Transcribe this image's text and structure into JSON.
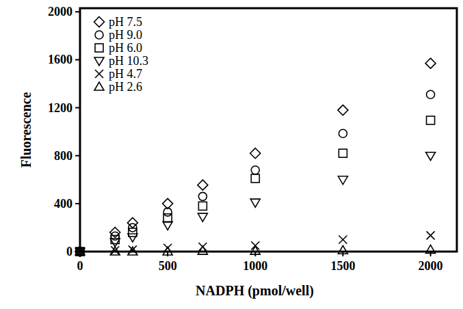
{
  "chart_data": {
    "type": "scatter",
    "x_label": "NADPH (pmol/well)",
    "y_label": "Fluorescence",
    "x": [
      0,
      200,
      300,
      500,
      700,
      1000,
      1500,
      2000
    ],
    "series": [
      {
        "name": "pH 7.5",
        "color": "#000000",
        "marker": "diamond",
        "values": [
          0,
          160,
          240,
          400,
          555,
          820,
          1180,
          1570
        ]
      },
      {
        "name": "pH 9.0",
        "color": "#000000",
        "marker": "circle",
        "values": [
          0,
          130,
          200,
          330,
          460,
          680,
          985,
          1310
        ]
      },
      {
        "name": "pH 6.0",
        "color": "#000000",
        "marker": "square",
        "values": [
          0,
          100,
          160,
          280,
          380,
          610,
          820,
          1095
        ]
      },
      {
        "name": "pH 10.3",
        "color": "#000000",
        "marker": "triangle-down",
        "values": [
          0,
          80,
          120,
          220,
          290,
          410,
          600,
          800
        ]
      },
      {
        "name": "pH 4.7",
        "color": "#000000",
        "marker": "x",
        "values": [
          0,
          10,
          15,
          30,
          40,
          50,
          100,
          135
        ]
      },
      {
        "name": "pH 2.6",
        "color": "#000000",
        "marker": "triangle-up",
        "values": [
          0,
          0,
          0,
          0,
          5,
          5,
          10,
          15
        ]
      }
    ],
    "xlim": [
      0,
      2150
    ],
    "ylim": [
      0,
      2030
    ],
    "xticks": [
      0,
      500,
      1000,
      1500,
      2000
    ],
    "yticks": [
      0,
      400,
      800,
      1200,
      1600,
      2000
    ],
    "legend": "upper left",
    "grid": false
  }
}
